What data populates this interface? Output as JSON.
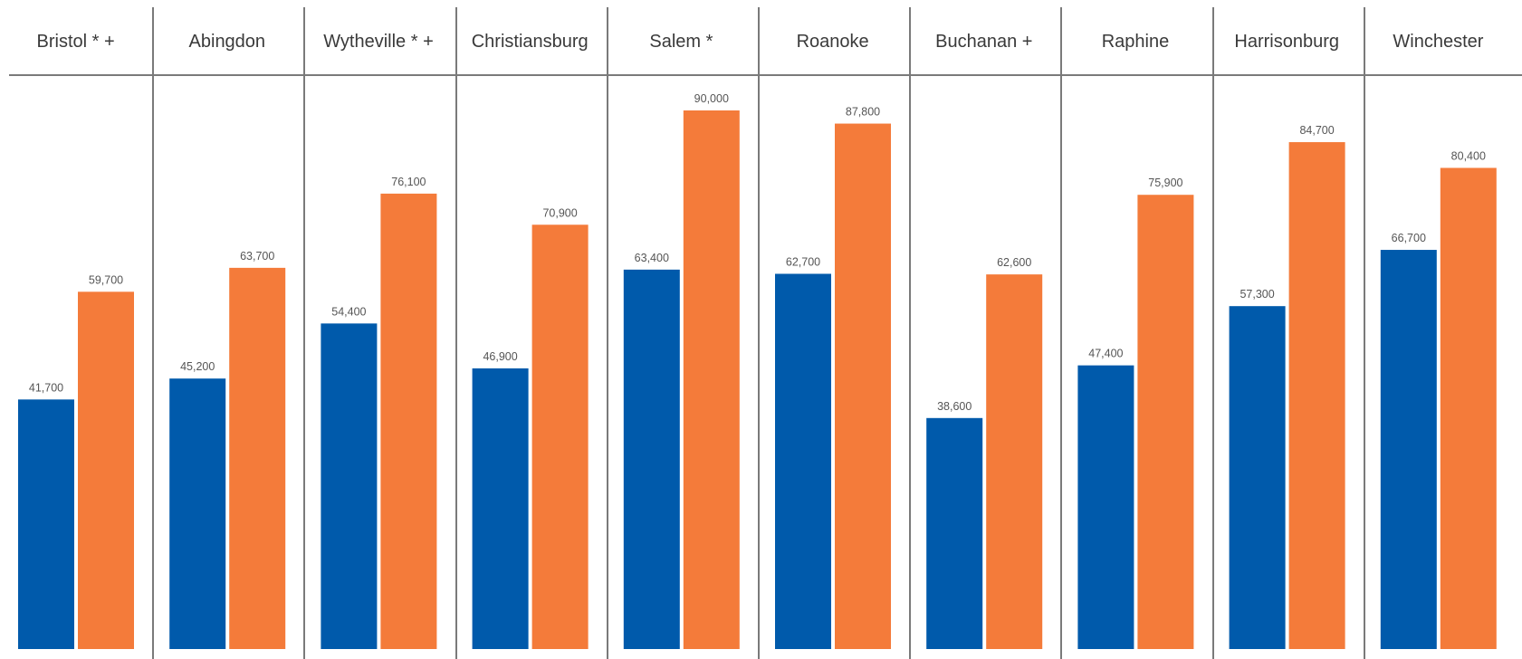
{
  "chart_data": {
    "type": "bar",
    "title": "",
    "xlabel": "",
    "ylabel": "",
    "ylim": [
      0,
      100000
    ],
    "grid": false,
    "legend": "none",
    "categories": [
      "Bristol * +",
      "Abingdon",
      "Wytheville * +",
      "Christiansburg",
      "Salem *",
      "Roanoke",
      "Buchanan +",
      "Raphine",
      "Harrisonburg",
      "Winchester"
    ],
    "series": [
      {
        "color": "#005aab",
        "values": [
          41700,
          45200,
          54400,
          46900,
          63400,
          62700,
          38600,
          47400,
          57300,
          66700
        ],
        "labels": [
          "41,700",
          "45,200",
          "54,400",
          "46,900",
          "63,400",
          "62,700",
          "38,600",
          "47,400",
          "57,300",
          "66,700"
        ]
      },
      {
        "color": "#f47b3a",
        "values": [
          59700,
          63700,
          76100,
          70900,
          90000,
          87800,
          62600,
          75900,
          84700,
          80400
        ],
        "labels": [
          "59,700",
          "63,700",
          "76,100",
          "70,900",
          "90,000",
          "87,800",
          "62,600",
          "75,900",
          "84,700",
          "80,400"
        ]
      }
    ]
  }
}
